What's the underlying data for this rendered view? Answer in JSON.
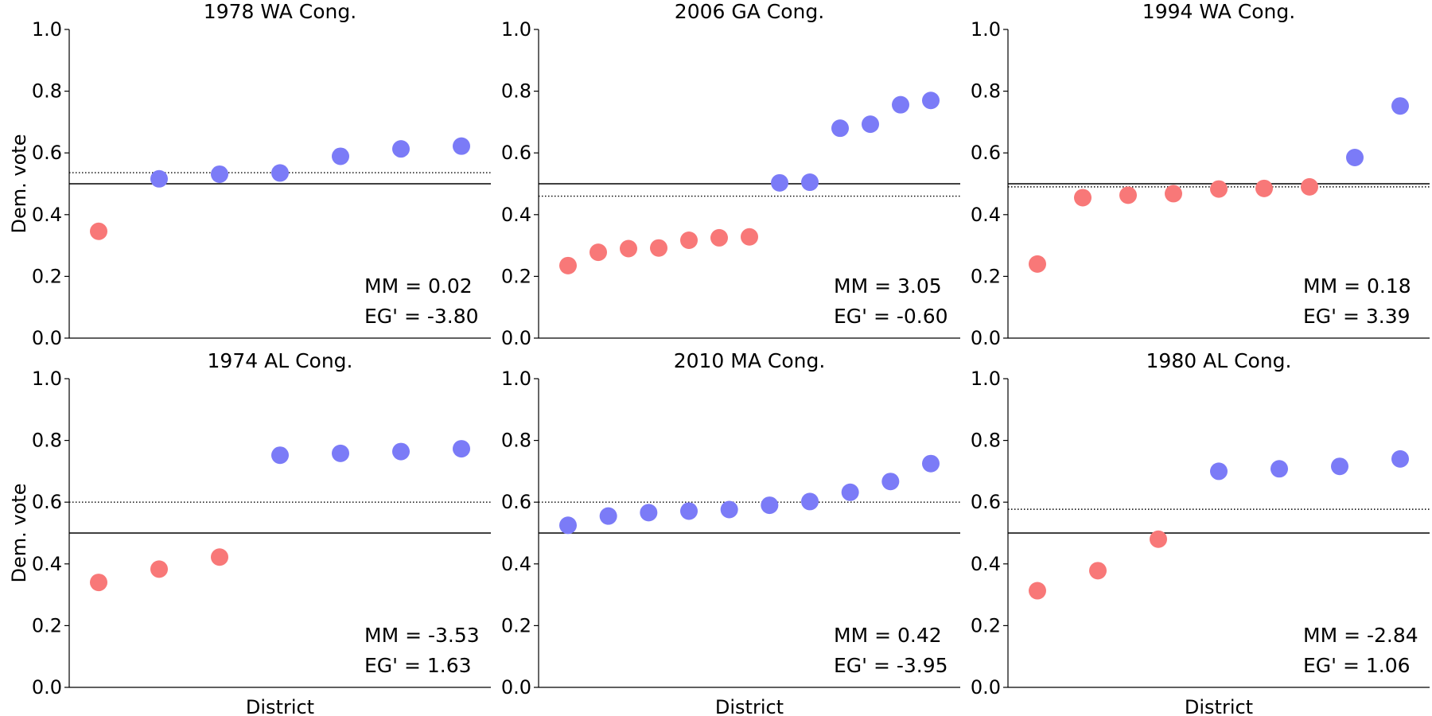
{
  "chart_data": [
    {
      "type": "scatter",
      "title": "1978 WA Cong.",
      "xlabel": "",
      "ylabel": "Dem. vote",
      "ylim": [
        0,
        1
      ],
      "yticks": [
        "0.0",
        "0.2",
        "0.4",
        "0.6",
        "0.8",
        "1.0"
      ],
      "values": [
        0.346,
        0.516,
        0.531,
        0.535,
        0.589,
        0.613,
        0.622
      ],
      "mean": 0.536,
      "mm_label": "MM = 0.02",
      "eg_label": "EG' = -3.80"
    },
    {
      "type": "scatter",
      "title": "2006 GA Cong.",
      "xlabel": "",
      "ylabel": "",
      "ylim": [
        0,
        1
      ],
      "yticks": [
        "0.0",
        "0.2",
        "0.4",
        "0.6",
        "0.8",
        "1.0"
      ],
      "values": [
        0.235,
        0.278,
        0.29,
        0.292,
        0.317,
        0.325,
        0.328,
        0.503,
        0.505,
        0.68,
        0.693,
        0.756,
        0.77
      ],
      "mean": 0.46,
      "mm_label": "MM = 3.05",
      "eg_label": "EG' = -0.60"
    },
    {
      "type": "scatter",
      "title": "1994 WA Cong.",
      "xlabel": "",
      "ylabel": "",
      "ylim": [
        0,
        1
      ],
      "yticks": [
        "0.0",
        "0.2",
        "0.4",
        "0.6",
        "0.8",
        "1.0"
      ],
      "values": [
        0.24,
        0.455,
        0.463,
        0.468,
        0.483,
        0.485,
        0.49,
        0.585,
        0.752
      ],
      "mean": 0.49,
      "mm_label": "MM = 0.18",
      "eg_label": "EG' = 3.39"
    },
    {
      "type": "scatter",
      "title": "1974 AL Cong.",
      "xlabel": "District",
      "ylabel": "Dem. vote",
      "ylim": [
        0,
        1
      ],
      "yticks": [
        "0.0",
        "0.2",
        "0.4",
        "0.6",
        "0.8",
        "1.0"
      ],
      "values": [
        0.34,
        0.383,
        0.422,
        0.752,
        0.758,
        0.764,
        0.773
      ],
      "mean": 0.6,
      "mm_label": "MM = -3.53",
      "eg_label": "EG' = 1.63"
    },
    {
      "type": "scatter",
      "title": "2010 MA Cong.",
      "xlabel": "District",
      "ylabel": "",
      "ylim": [
        0,
        1
      ],
      "yticks": [
        "0.0",
        "0.2",
        "0.4",
        "0.6",
        "0.8",
        "1.0"
      ],
      "values": [
        0.525,
        0.555,
        0.566,
        0.571,
        0.576,
        0.59,
        0.602,
        0.632,
        0.667,
        0.725
      ],
      "mean": 0.6,
      "mm_label": "MM = 0.42",
      "eg_label": "EG' = -3.95"
    },
    {
      "type": "scatter",
      "title": "1980 AL Cong.",
      "xlabel": "District",
      "ylabel": "",
      "ylim": [
        0,
        1
      ],
      "yticks": [
        "0.0",
        "0.2",
        "0.4",
        "0.6",
        "0.8",
        "1.0"
      ],
      "values": [
        0.313,
        0.378,
        0.48,
        0.7,
        0.708,
        0.716,
        0.74
      ],
      "mean": 0.577,
      "mm_label": "MM = -2.84",
      "eg_label": "EG' = 1.06"
    }
  ],
  "colors": {
    "democrat": "#7b7bf7",
    "republican": "#f87878",
    "axis": "#000000"
  },
  "threshold": 0.5
}
